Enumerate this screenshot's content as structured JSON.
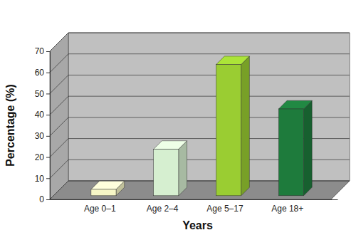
{
  "chart_data": {
    "type": "bar",
    "x_label": "Years",
    "y_label": "Percentage (%)",
    "categories": [
      "Age 0–1",
      "Age 2–4",
      "Age 5–17",
      "Age 18+"
    ],
    "values": [
      3,
      22,
      62,
      41
    ],
    "colors": [
      "#f7f7c6",
      "#d6efd0",
      "#9acd32",
      "#1e7b3c"
    ],
    "ylim": [
      0,
      70
    ],
    "yticks": [
      0,
      10,
      20,
      30,
      40,
      50,
      60,
      70
    ],
    "grid": true
  }
}
